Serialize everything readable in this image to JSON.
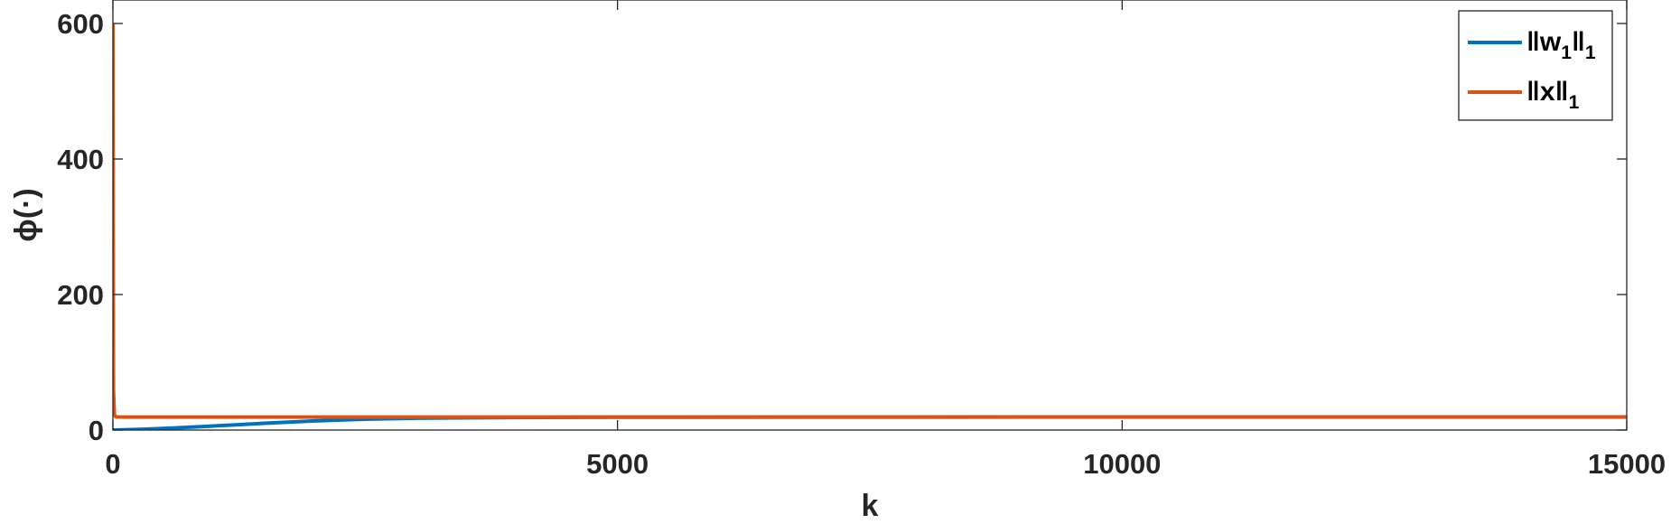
{
  "chart_data": {
    "type": "line",
    "title": "",
    "xlabel": "k",
    "ylabel": "ϕ(·)",
    "xlim": [
      0,
      15000
    ],
    "ylim": [
      0,
      600
    ],
    "xticks": [
      0,
      5000,
      10000,
      15000
    ],
    "yticks": [
      0,
      200,
      400,
      600
    ],
    "xtick_labels": [
      "0",
      "5000",
      "10000",
      "15000"
    ],
    "ytick_labels": [
      "0",
      "200",
      "400",
      "600"
    ],
    "grid": false,
    "legend_position": "top-right",
    "series": [
      {
        "name": "‖w1‖1",
        "legend_main": "‖w",
        "legend_sub1": "1",
        "legend_mid": "‖",
        "legend_sub2": "1",
        "color": "#0072BD",
        "x": [
          0,
          100,
          300,
          600,
          1000,
          1500,
          2000,
          2500,
          3000,
          4000,
          5000,
          7000,
          10000,
          15000
        ],
        "y": [
          0,
          0.3,
          1.2,
          3,
          6,
          10,
          13.5,
          16,
          17.5,
          18.5,
          19,
          19.2,
          19.3,
          19.3
        ]
      },
      {
        "name": "‖x‖1",
        "legend_main": "‖x",
        "legend_sub1": "",
        "legend_mid": "‖",
        "legend_sub2": "1",
        "color": "#D95319",
        "x": [
          0,
          5,
          15,
          30,
          60,
          100,
          500,
          1000,
          2000,
          5000,
          10000,
          15000
        ],
        "y": [
          600,
          60,
          22,
          19.5,
          19.3,
          19.2,
          19.2,
          19.2,
          19.2,
          19.2,
          19.2,
          19.2
        ]
      }
    ]
  }
}
